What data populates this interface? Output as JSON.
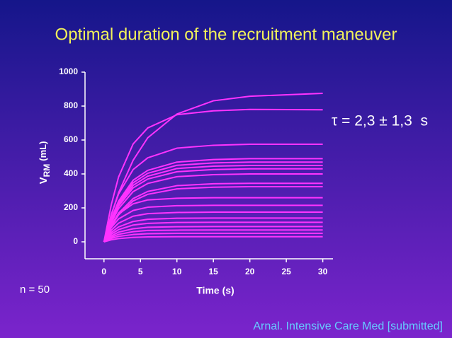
{
  "chart_data": {
    "type": "line",
    "title": "Optimal duration of the recruitment maneuver",
    "annotation": "τ = 2,3 ± 1,3  s",
    "n_label": "n = 50",
    "citation": "Arnal. Intensive Care Med [submitted]",
    "y_label": "V",
    "y_label_sub": "RM",
    "y_label_unit": "(mL)",
    "x_label": "Time (s)",
    "xlim": [
      -2.6,
      31.4
    ],
    "ylim": [
      -100,
      1000
    ],
    "xticks": [
      0,
      5,
      10,
      15,
      20,
      25,
      30
    ],
    "yticks": [
      0,
      200,
      400,
      600,
      800,
      1000
    ],
    "x": [
      0,
      1,
      2,
      4,
      6,
      10,
      15,
      20,
      30
    ],
    "series": [
      {
        "color": "#ff33ff",
        "values": [
          0,
          158,
          289,
          481,
          613,
          753,
          831,
          858,
          875
        ]
      },
      {
        "color": "#ff33ff",
        "values": [
          0,
          218,
          382,
          577,
          671,
          749,
          772,
          780,
          778
        ]
      },
      {
        "color": "#ff33ff",
        "values": [
          0,
          161,
          282,
          426,
          495,
          552,
          569,
          575,
          575
        ]
      },
      {
        "color": "#ff33ff",
        "values": [
          0,
          137,
          240,
          363,
          421,
          470,
          485,
          490,
          490
        ]
      },
      {
        "color": "#ff33ff",
        "values": [
          0,
          132,
          230,
          348,
          404,
          451,
          465,
          470,
          470
        ]
      },
      {
        "color": "#ff33ff",
        "values": [
          0,
          126,
          221,
          333,
          387,
          432,
          446,
          450,
          450
        ]
      },
      {
        "color": "#ff33ff",
        "values": [
          0,
          120,
          211,
          318,
          370,
          413,
          426,
          430,
          430
        ]
      },
      {
        "color": "#ff33ff",
        "values": [
          0,
          112,
          196,
          296,
          344,
          384,
          396,
          400,
          400
        ]
      },
      {
        "color": "#ff33ff",
        "values": [
          0,
          97,
          169,
          255,
          297,
          331,
          342,
          345,
          345
        ]
      },
      {
        "color": "#ff33ff",
        "values": [
          0,
          91,
          159,
          241,
          280,
          312,
          322,
          325,
          325
        ]
      },
      {
        "color": "#ff33ff",
        "values": [
          0,
          101,
          164,
          224,
          247,
          257,
          260,
          260,
          260
        ]
      },
      {
        "color": "#ff33ff",
        "values": [
          0,
          84,
          135,
          185,
          204,
          213,
          215,
          215,
          215
        ]
      },
      {
        "color": "#ff33ff",
        "values": [
          0,
          68,
          110,
          151,
          166,
          173,
          175,
          175,
          175
        ]
      },
      {
        "color": "#ff33ff",
        "values": [
          0,
          55,
          88,
          120,
          133,
          139,
          140,
          140,
          140
        ]
      },
      {
        "color": "#ff33ff",
        "values": [
          0,
          45,
          72,
          99,
          109,
          114,
          115,
          115,
          115
        ]
      },
      {
        "color": "#ff33ff",
        "values": [
          0,
          35,
          57,
          77,
          86,
          89,
          90,
          90,
          90
        ]
      },
      {
        "color": "#ff33ff",
        "values": [
          0,
          27,
          44,
          60,
          67,
          69,
          70,
          70,
          70
        ]
      },
      {
        "color": "#ff33ff",
        "values": [
          0,
          20,
          32,
          43,
          48,
          50,
          50,
          50,
          50
        ]
      },
      {
        "color": "#ff33ff",
        "values": [
          0,
          12,
          19,
          26,
          29,
          30,
          30,
          30,
          30
        ]
      }
    ]
  }
}
